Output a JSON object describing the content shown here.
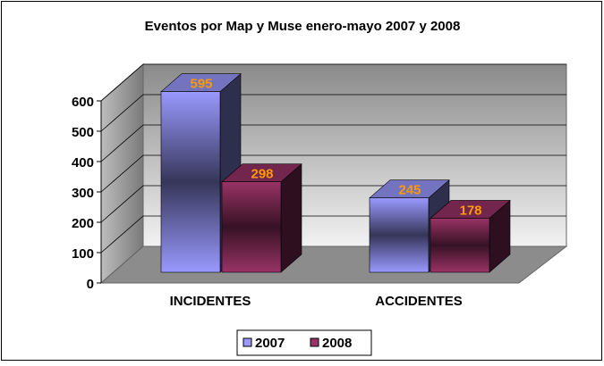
{
  "chart_data": {
    "type": "bar3d",
    "title": "Eventos por Map y Muse enero-mayo 2007 y 2008",
    "categories": [
      "INCIDENTES",
      "ACCIDENTES"
    ],
    "series": [
      {
        "name": "2007",
        "color": "#9999ff",
        "values": [
          595,
          245
        ]
      },
      {
        "name": "2008",
        "color": "#993366",
        "values": [
          298,
          178
        ]
      }
    ],
    "ylim": [
      0,
      600
    ],
    "yticks": [
      0,
      100,
      200,
      300,
      400,
      500,
      600
    ],
    "grid": true,
    "legend": "bottom"
  }
}
